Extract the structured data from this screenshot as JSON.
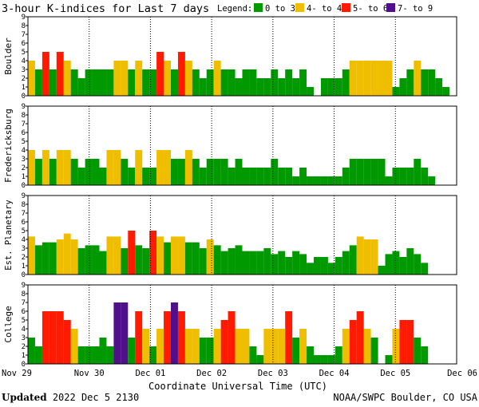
{
  "title": "3-hour K-indices for Last 7 days",
  "legend": {
    "label": "Legend:",
    "items": [
      {
        "name": "0 to 3+",
        "color": "#009900"
      },
      {
        "name": "4- to 4+",
        "color": "#f0be00"
      },
      {
        "name": "5- to 6+",
        "color": "#ff1a00"
      },
      {
        "name": "7- to 9",
        "color": "#50108c"
      }
    ]
  },
  "xlabel": "Coordinate Universal Time (UTC)",
  "footer": {
    "updated_label": "Updated",
    "updated_value": "2022 Dec  5 2130",
    "source": "NOAA/SWPC Boulder, CO USA"
  },
  "chart_data": {
    "type": "bar",
    "x_tick_labels": [
      "Nov 29",
      "Nov 30",
      "Dec 01",
      "Dec 02",
      "Dec 03",
      "Dec 04",
      "Dec 05",
      "Dec 06"
    ],
    "y_ticks": [
      "0",
      "1",
      "2",
      "3",
      "4",
      "5",
      "6",
      "7",
      "8",
      "9"
    ],
    "ylim": [
      0,
      9
    ],
    "grid": true,
    "panels": [
      {
        "name": "Boulder",
        "values": [
          4,
          3,
          5,
          3,
          5,
          4,
          3,
          2,
          3,
          3,
          3,
          3,
          4,
          4,
          3,
          4,
          3,
          3,
          5,
          4,
          3,
          5,
          4,
          3,
          2,
          3,
          4,
          3,
          3,
          2,
          3,
          3,
          2,
          2,
          3,
          2,
          3,
          2,
          3,
          1,
          0,
          2,
          2,
          2,
          3,
          4,
          4,
          4,
          4,
          4,
          4,
          1,
          2,
          3,
          4,
          3,
          3,
          2,
          1,
          0
        ]
      },
      {
        "name": "Fredericksburg",
        "values": [
          4,
          3,
          4,
          3,
          4,
          4,
          3,
          2,
          3,
          3,
          2,
          4,
          4,
          3,
          2,
          4,
          2,
          2,
          4,
          4,
          3,
          3,
          4,
          3,
          2,
          3,
          3,
          3,
          2,
          3,
          2,
          2,
          2,
          2,
          3,
          2,
          2,
          1,
          2,
          1,
          1,
          1,
          1,
          1,
          2,
          3,
          3,
          3,
          3,
          3,
          1,
          2,
          2,
          2,
          3,
          2,
          1,
          0
        ]
      },
      {
        "name": "Est. Planetary",
        "values": [
          4.33,
          3.33,
          3.67,
          3.67,
          4,
          4.67,
          4,
          3,
          3.33,
          3.33,
          2.67,
          4.33,
          4.33,
          3,
          5,
          3.33,
          3,
          5,
          4.33,
          3.67,
          4.33,
          4.33,
          3.67,
          3.67,
          3,
          4,
          3.33,
          2.67,
          3,
          3.33,
          2.67,
          2.67,
          2.67,
          3,
          2.33,
          2.67,
          2,
          2.67,
          2.33,
          1.33,
          2,
          2,
          1.33,
          2,
          2.67,
          3.33,
          4.33,
          4,
          4,
          1,
          2.33,
          2.67,
          2,
          3,
          2.33,
          1.33
        ]
      },
      {
        "name": "College",
        "values": [
          3,
          2,
          6,
          6,
          6,
          5,
          4,
          2,
          2,
          2,
          3,
          2,
          7,
          7,
          3,
          6,
          4,
          2,
          4,
          6,
          7,
          6,
          4,
          4,
          3,
          3,
          4,
          5,
          6,
          4,
          4,
          2,
          1,
          4,
          4,
          4,
          6,
          3,
          4,
          2,
          1,
          1,
          1,
          2,
          4,
          5,
          6,
          4,
          3,
          0,
          1,
          4,
          5,
          5,
          3,
          2,
          0
        ]
      }
    ]
  }
}
